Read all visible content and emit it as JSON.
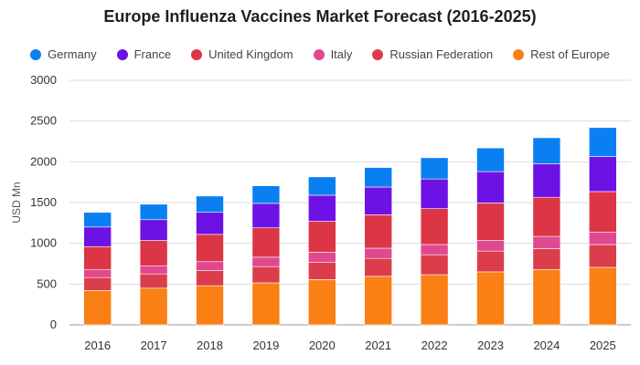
{
  "chart_data": {
    "type": "bar",
    "stacked": true,
    "title": "Europe Influenza Vaccines Market Forecast (2016-2025)",
    "xlabel": "",
    "ylabel": "USD Mn",
    "ylim": [
      0,
      3000
    ],
    "yticks": [
      0,
      500,
      1000,
      1500,
      2000,
      2500,
      3000
    ],
    "grid": true,
    "legend_position": "top",
    "categories": [
      "2016",
      "2017",
      "2018",
      "2019",
      "2020",
      "2021",
      "2022",
      "2023",
      "2024",
      "2025"
    ],
    "series": [
      {
        "name": "Rest of Europe",
        "color": "#fa7f14",
        "values": [
          420,
          450,
          480,
          515,
          555,
          595,
          615,
          650,
          680,
          705
        ]
      },
      {
        "name": "Russian Federation",
        "color": "#dc3d4b",
        "values": [
          160,
          175,
          185,
          200,
          210,
          220,
          245,
          255,
          255,
          280
        ]
      },
      {
        "name": "Italy",
        "color": "#e0488f",
        "values": [
          95,
          100,
          110,
          115,
          125,
          125,
          125,
          130,
          150,
          150
        ]
      },
      {
        "name": "United Kingdom",
        "color": "#dc3545",
        "values": [
          285,
          310,
          335,
          360,
          380,
          410,
          440,
          460,
          480,
          500
        ]
      },
      {
        "name": "France",
        "color": "#6d12e5",
        "values": [
          240,
          255,
          270,
          300,
          320,
          340,
          365,
          385,
          410,
          430
        ]
      },
      {
        "name": "Germany",
        "color": "#0a7ff2",
        "values": [
          180,
          190,
          200,
          215,
          225,
          240,
          260,
          290,
          320,
          355
        ]
      }
    ]
  },
  "legend_order": [
    "Germany",
    "France",
    "United Kingdom",
    "Italy",
    "Russian Federation",
    "Rest of Europe"
  ]
}
